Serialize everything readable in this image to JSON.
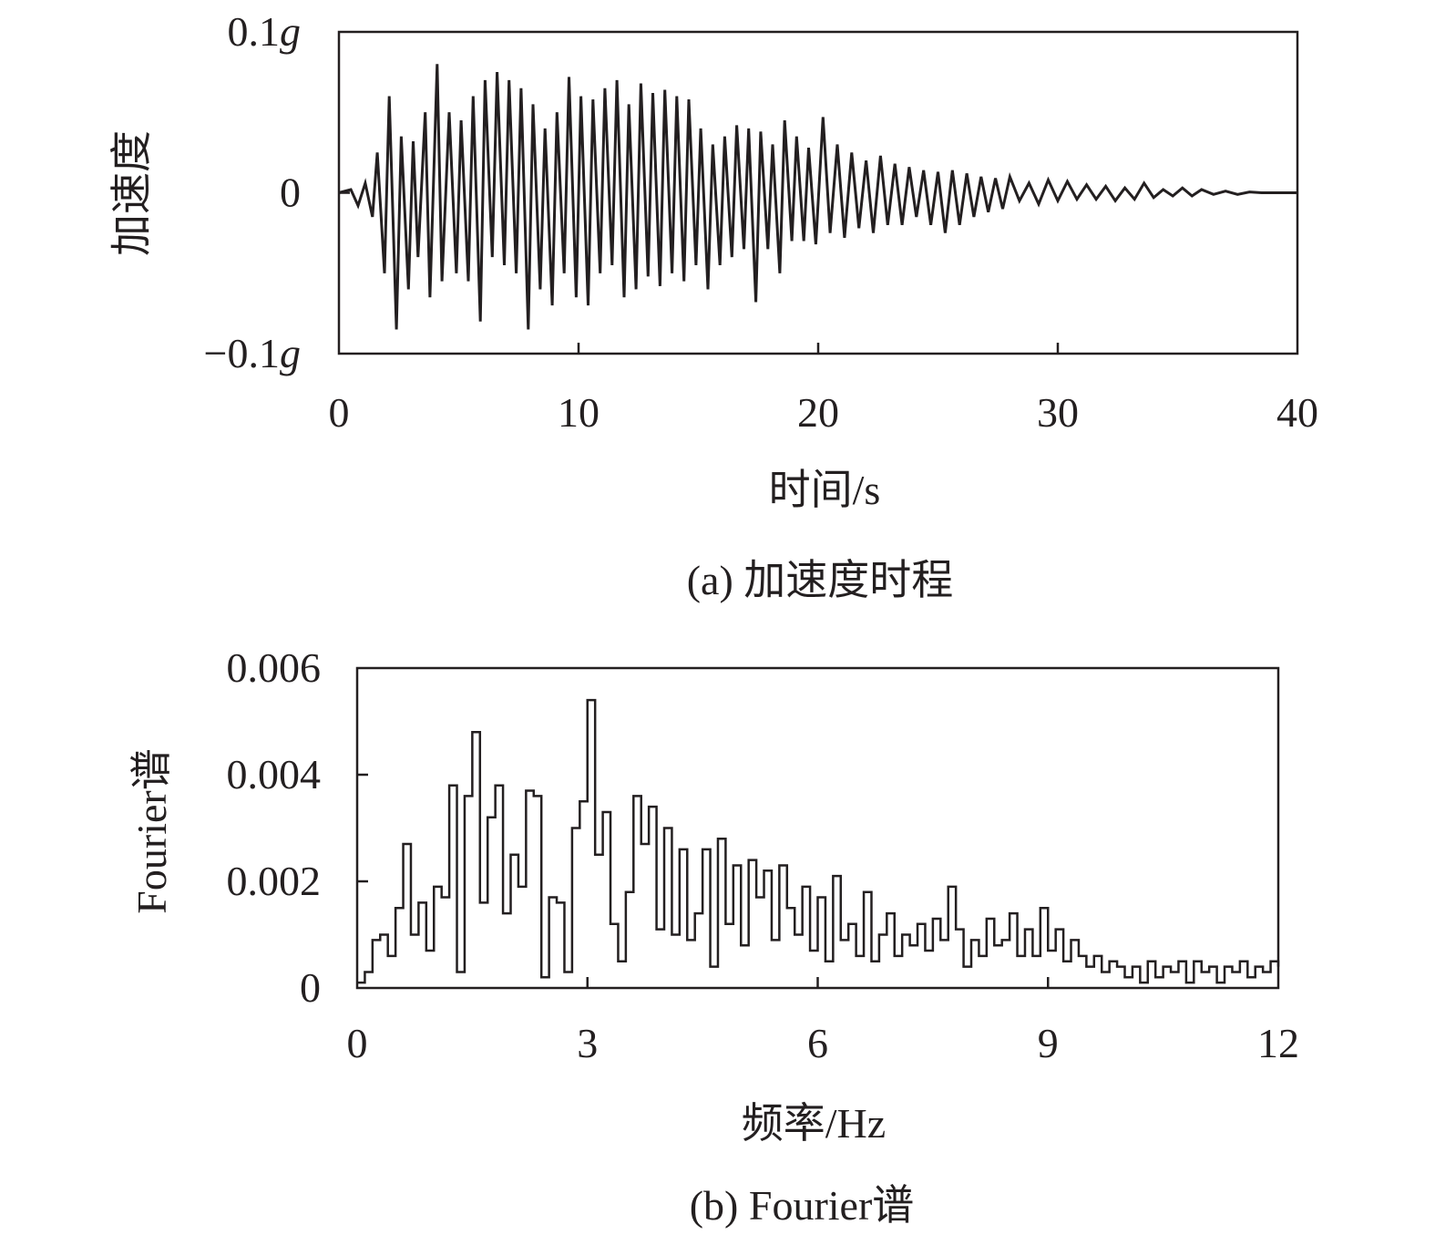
{
  "chart_data": [
    {
      "type": "line",
      "caption": "(a) 加速度时程",
      "xlabel": "时间/s",
      "ylabel": "加速度",
      "xlim": [
        0,
        40
      ],
      "ylim": [
        -0.1,
        0.1
      ],
      "x_ticks": [
        "0",
        "10",
        "20",
        "30",
        "40"
      ],
      "y_ticks": [
        {
          "value": 0.1,
          "num": "0.1",
          "unit": "g"
        },
        {
          "value": 0,
          "num": "0",
          "unit": ""
        },
        {
          "value": -0.1,
          "num": "−0.1",
          "unit": "g"
        }
      ],
      "grid": false,
      "line_color": "#231f20",
      "series": [
        {
          "x": [
            0,
            0.5,
            0.8,
            1.1,
            1.4,
            1.6,
            1.9,
            2.1,
            2.4,
            2.6,
            2.9,
            3.1,
            3.3,
            3.6,
            3.8,
            4.1,
            4.3,
            4.6,
            4.9,
            5.1,
            5.4,
            5.6,
            5.9,
            6.1,
            6.4,
            6.6,
            6.9,
            7.1,
            7.4,
            7.6,
            7.9,
            8.1,
            8.4,
            8.6,
            8.9,
            9.1,
            9.4,
            9.6,
            9.9,
            10.1,
            10.4,
            10.6,
            10.9,
            11.1,
            11.4,
            11.6,
            11.9,
            12.1,
            12.4,
            12.6,
            12.9,
            13.1,
            13.4,
            13.6,
            13.9,
            14.1,
            14.4,
            14.6,
            14.9,
            15.1,
            15.4,
            15.6,
            15.9,
            16.1,
            16.4,
            16.6,
            16.9,
            17.1,
            17.4,
            17.6,
            17.9,
            18.1,
            18.4,
            18.6,
            18.9,
            19.1,
            19.4,
            19.6,
            19.9,
            20.2,
            20.5,
            20.8,
            21.1,
            21.4,
            21.7,
            22.0,
            22.3,
            22.6,
            22.9,
            23.2,
            23.5,
            23.8,
            24.1,
            24.4,
            24.7,
            25.0,
            25.3,
            25.6,
            25.9,
            26.2,
            26.5,
            26.8,
            27.1,
            27.4,
            27.7,
            28.0,
            28.4,
            28.8,
            29.2,
            29.6,
            30.0,
            30.4,
            30.8,
            31.2,
            31.6,
            32.0,
            32.4,
            32.8,
            33.2,
            33.6,
            34.0,
            34.4,
            34.8,
            35.2,
            35.6,
            36.0,
            36.5,
            37.0,
            37.5,
            38.0,
            38.5,
            39.0,
            39.5,
            40.0
          ],
          "y": [
            0,
            0.002,
            -0.008,
            0.006,
            -0.015,
            0.025,
            -0.05,
            0.06,
            -0.085,
            0.035,
            -0.06,
            0.032,
            -0.04,
            0.05,
            -0.065,
            0.08,
            -0.055,
            0.05,
            -0.05,
            0.045,
            -0.055,
            0.06,
            -0.08,
            0.07,
            -0.04,
            0.075,
            -0.045,
            0.07,
            -0.05,
            0.065,
            -0.085,
            0.055,
            -0.06,
            0.04,
            -0.07,
            0.05,
            -0.05,
            0.072,
            -0.065,
            0.06,
            -0.07,
            0.058,
            -0.05,
            0.065,
            -0.045,
            0.07,
            -0.065,
            0.055,
            -0.06,
            0.068,
            -0.052,
            0.062,
            -0.058,
            0.064,
            -0.05,
            0.06,
            -0.055,
            0.058,
            -0.045,
            0.04,
            -0.06,
            0.03,
            -0.045,
            0.035,
            -0.04,
            0.042,
            -0.035,
            0.04,
            -0.068,
            0.038,
            -0.035,
            0.03,
            -0.05,
            0.045,
            -0.03,
            0.035,
            -0.03,
            0.028,
            -0.032,
            0.047,
            -0.025,
            0.03,
            -0.028,
            0.025,
            -0.022,
            0.02,
            -0.025,
            0.023,
            -0.02,
            0.018,
            -0.02,
            0.016,
            -0.015,
            0.014,
            -0.02,
            0.013,
            -0.025,
            0.014,
            -0.02,
            0.012,
            -0.015,
            0.01,
            -0.012,
            0.009,
            -0.01,
            0.01,
            -0.005,
            0.006,
            -0.007,
            0.008,
            -0.005,
            0.007,
            -0.004,
            0.005,
            -0.004,
            0.004,
            -0.005,
            0.003,
            -0.004,
            0.006,
            -0.003,
            0.002,
            -0.002,
            0.003,
            -0.002,
            0.002,
            -0.001,
            0.001,
            -0.001,
            0.0005,
            0,
            0,
            0,
            0
          ]
        }
      ]
    },
    {
      "type": "line",
      "caption": "(b) Fourier谱",
      "xlabel": "频率/Hz",
      "ylabel": "Fourier谱",
      "xlim": [
        0,
        12
      ],
      "ylim": [
        0,
        0.006
      ],
      "x_ticks": [
        "0",
        "3",
        "6",
        "9",
        "12"
      ],
      "y_ticks": [
        {
          "value": 0.006,
          "num": "0.006",
          "unit": ""
        },
        {
          "value": 0.004,
          "num": "0.004",
          "unit": ""
        },
        {
          "value": 0.002,
          "num": "0.002",
          "unit": ""
        },
        {
          "value": 0,
          "num": "0",
          "unit": ""
        }
      ],
      "grid": false,
      "line_color": "#231f20",
      "series": [
        {
          "x": [
            0,
            0.1,
            0.2,
            0.3,
            0.4,
            0.5,
            0.6,
            0.7,
            0.8,
            0.9,
            1.0,
            1.1,
            1.2,
            1.3,
            1.4,
            1.5,
            1.6,
            1.7,
            1.8,
            1.9,
            2.0,
            2.1,
            2.2,
            2.3,
            2.4,
            2.5,
            2.6,
            2.7,
            2.8,
            2.9,
            3.0,
            3.1,
            3.2,
            3.3,
            3.4,
            3.5,
            3.6,
            3.7,
            3.8,
            3.9,
            4.0,
            4.1,
            4.2,
            4.3,
            4.4,
            4.5,
            4.6,
            4.7,
            4.8,
            4.9,
            5.0,
            5.1,
            5.2,
            5.3,
            5.4,
            5.5,
            5.6,
            5.7,
            5.8,
            5.9,
            6.0,
            6.1,
            6.2,
            6.3,
            6.4,
            6.5,
            6.6,
            6.7,
            6.8,
            6.9,
            7.0,
            7.1,
            7.2,
            7.3,
            7.4,
            7.5,
            7.6,
            7.7,
            7.8,
            7.9,
            8.0,
            8.1,
            8.2,
            8.3,
            8.4,
            8.5,
            8.6,
            8.7,
            8.8,
            8.9,
            9.0,
            9.1,
            9.2,
            9.3,
            9.4,
            9.5,
            9.6,
            9.7,
            9.8,
            9.9,
            10.0,
            10.1,
            10.2,
            10.3,
            10.4,
            10.5,
            10.6,
            10.7,
            10.8,
            10.9,
            11.0,
            11.1,
            11.2,
            11.3,
            11.4,
            11.5,
            11.6,
            11.7,
            11.8,
            11.9,
            12.0
          ],
          "y": [
            0.0001,
            0.0003,
            0.0009,
            0.001,
            0.0006,
            0.0015,
            0.0027,
            0.001,
            0.0016,
            0.0007,
            0.0019,
            0.0017,
            0.0038,
            0.0003,
            0.0036,
            0.0048,
            0.0016,
            0.0032,
            0.0038,
            0.0014,
            0.0025,
            0.0019,
            0.0037,
            0.0036,
            0.0002,
            0.0017,
            0.0016,
            0.0003,
            0.003,
            0.0035,
            0.0054,
            0.0025,
            0.0033,
            0.0012,
            0.0005,
            0.0018,
            0.0036,
            0.0027,
            0.0034,
            0.0011,
            0.003,
            0.001,
            0.0026,
            0.0009,
            0.0014,
            0.0026,
            0.0004,
            0.0028,
            0.0012,
            0.0023,
            0.0008,
            0.0024,
            0.0017,
            0.0022,
            0.0009,
            0.0023,
            0.0015,
            0.001,
            0.0019,
            0.0007,
            0.0017,
            0.0005,
            0.0021,
            0.0009,
            0.0012,
            0.0006,
            0.0018,
            0.0005,
            0.001,
            0.0014,
            0.0006,
            0.001,
            0.0008,
            0.0012,
            0.0007,
            0.0013,
            0.0009,
            0.0019,
            0.0011,
            0.0004,
            0.0009,
            0.0006,
            0.0013,
            0.0008,
            0.0009,
            0.0014,
            0.0006,
            0.0011,
            0.0006,
            0.0015,
            0.0007,
            0.0011,
            0.0005,
            0.0009,
            0.0006,
            0.0004,
            0.0006,
            0.0003,
            0.0005,
            0.0004,
            0.0002,
            0.0004,
            0.0001,
            0.0005,
            0.0002,
            0.0004,
            0.0003,
            0.0005,
            0.0001,
            0.0005,
            0.0003,
            0.0004,
            0.0001,
            0.0004,
            0.0003,
            0.0005,
            0.0002,
            0.0004,
            0.0003,
            0.0005,
            0.0004
          ]
        }
      ]
    }
  ]
}
